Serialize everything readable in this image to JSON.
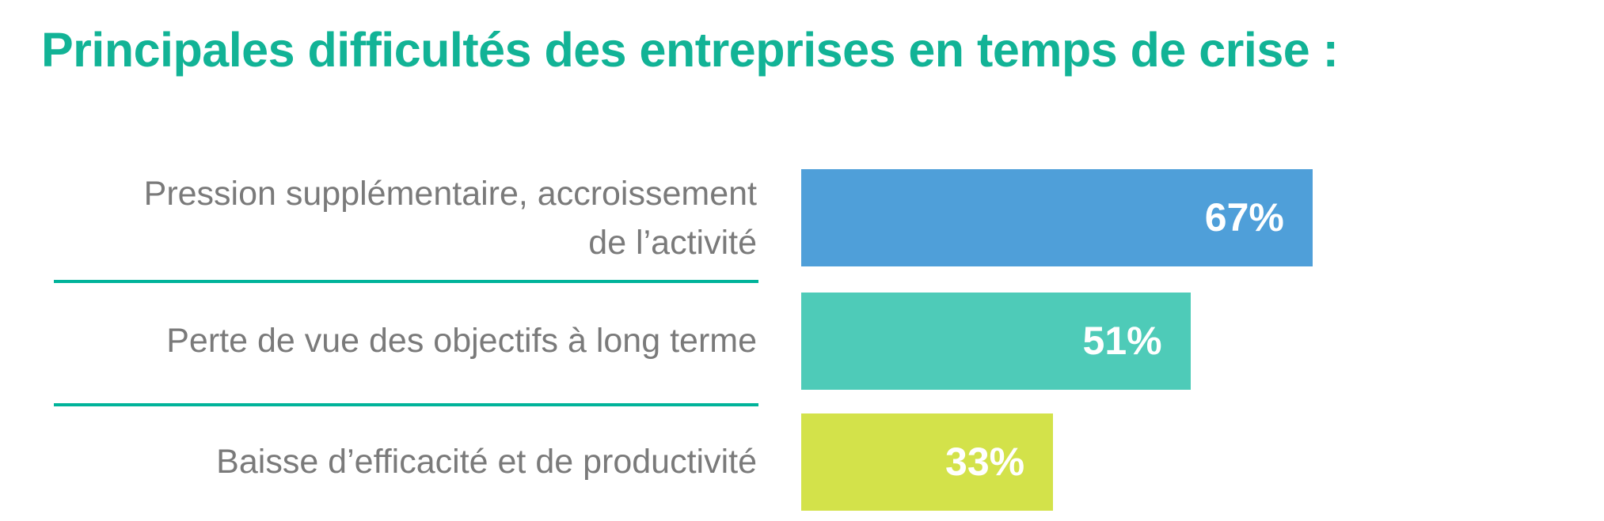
{
  "chart_data": {
    "type": "bar",
    "orientation": "horizontal",
    "title": "Principales difficultés des entreprises en temps de crise :",
    "categories": [
      "Pression supplémentaire, accroissement de l’activité",
      "Perte de vue des objectifs à long terme",
      "Baisse d’efficacité et de productivité"
    ],
    "category_lines": [
      [
        "Pression supplémentaire, accroissement",
        "de l’activité"
      ],
      [
        "Perte de vue des objectifs à long terme"
      ],
      [
        "Baisse d’efficacité et de productivité"
      ]
    ],
    "values": [
      67,
      51,
      33
    ],
    "value_labels": [
      "67%",
      "51%",
      "33%"
    ],
    "colors": [
      "#4f9fd9",
      "#4ecbb8",
      "#d3e24a"
    ],
    "separator_color": "#00b39a",
    "unit": "%",
    "grid": false,
    "axes_visible": false
  }
}
